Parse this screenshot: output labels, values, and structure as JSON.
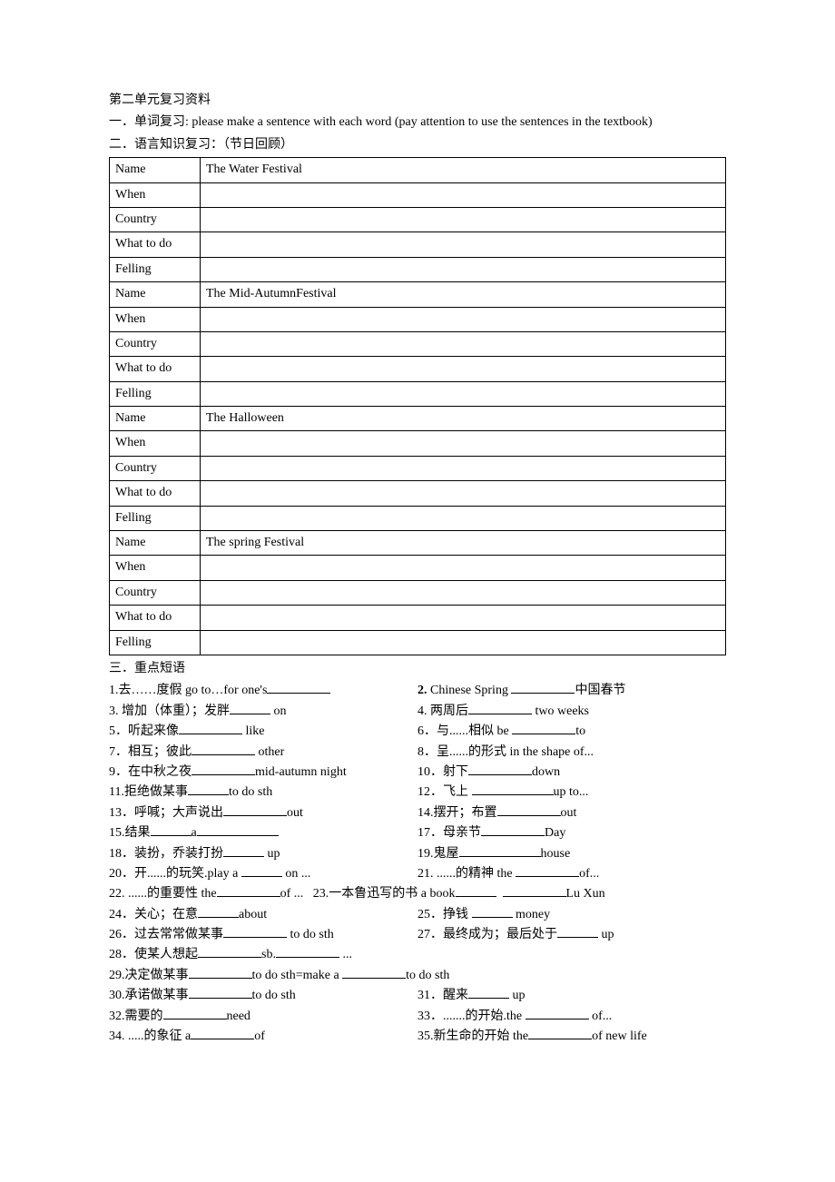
{
  "header": {
    "title": "第二单元复习资料",
    "section1": "一．单词复习: please make a sentence with each word (pay attention to use the sentences in the textbook)",
    "section2": "二．语言知识复习：（节日回顾）"
  },
  "table": {
    "rows": [
      {
        "label": "Name",
        "value": "The Water Festival"
      },
      {
        "label": "When",
        "value": ""
      },
      {
        "label": "Country",
        "value": ""
      },
      {
        "label": "What to do",
        "value": ""
      },
      {
        "label": "Felling",
        "value": ""
      },
      {
        "label": "Name",
        "value": "The Mid-AutumnFestival"
      },
      {
        "label": "When",
        "value": ""
      },
      {
        "label": "Country",
        "value": ""
      },
      {
        "label": "What to do",
        "value": ""
      },
      {
        "label": "Felling",
        "value": ""
      },
      {
        "label": "Name",
        "value": "The Halloween"
      },
      {
        "label": "When",
        "value": ""
      },
      {
        "label": "Country",
        "value": ""
      },
      {
        "label": "What to do",
        "value": ""
      },
      {
        "label": "Felling",
        "value": ""
      },
      {
        "label": "Name",
        "value": "The spring Festival"
      },
      {
        "label": "When",
        "value": ""
      },
      {
        "label": "Country",
        "value": ""
      },
      {
        "label": "What to do",
        "value": ""
      },
      {
        "label": "Felling",
        "value": ""
      }
    ]
  },
  "section3": {
    "title": "三．重点短语",
    "items": {
      "p1a": "1.去……度假  go to…for one's",
      "p1b": "2.",
      "p1b2": " Chinese Spring ",
      "p1b3": "中国春节",
      "p2a": " 3. 增加（体重）；发胖",
      "p2a2": " on",
      "p2b": "4. 两周后",
      "p2b2": " two weeks",
      "p3a": "5．听起来像",
      "p3a2": " like",
      "p3b": "6．与......相似 be ",
      "p3b2": "to",
      "p4a": "7．相互；彼此",
      "p4a2": " other",
      "p4b": " 8．呈......的形式 in the shape of...",
      "p5a": " 9．在中秋之夜",
      "p5a2": "mid-autumn night",
      "p5b": "10．射下",
      "p5b2": "down",
      "p6a": "11.拒绝做某事",
      "p6a2": "to do sth",
      "p6b": " 12．飞上 ",
      "p6b2": "up to...",
      "p7a": " 13．呼喊；大声说出",
      "p7a2": "out",
      "p7b": "14.摆开；布置",
      "p7b2": "out",
      "p8a": " 15.结果",
      "p8a2": "a",
      "p8b": "17．母亲节",
      "p8b2": "Day",
      "p9a": " 18．装扮，乔装打扮",
      "p9a2": " up",
      "p9b": "19.鬼屋",
      "p9b2": "house",
      "p10a": "20．开......的玩笑.play a ",
      "p10a2": " on ...",
      "p10b": " 21. ......的精神 the ",
      "p10b2": "of...",
      "p11a": " 22. ......的重要性 the",
      "p11a2": "of ...",
      "p11b": "23.一本鲁迅写的书 a book",
      "p11b2": "Lu Xun",
      "p12a": "24．关心；在意",
      "p12a2": "about",
      "p12b": "25．挣钱 ",
      "p12b2": " money",
      "p13a": "26．过去常常做某事",
      "p13a2": " to do sth",
      "p13b": "27．最终成为；最后处于",
      "p13b2": " up",
      "p14": " 28．使某人想起",
      "p14b": "sb.",
      "p14c": " ...",
      "p15": "29.决定做某事",
      "p15b": "to do sth=make a ",
      "p15c": "to do sth",
      "p16a": "30.承诺做某事",
      "p16a2": "to do sth",
      "p16b": "31．醒来",
      "p16b2": " up",
      "p17a": " 32.需要的",
      "p17a2": "need",
      "p17b": "33．.......的开始.the ",
      "p17b2": " of...",
      "p18a": "  34. .....的象征 a",
      "p18a2": "of",
      "p18b": " 35.新生命的开始 the",
      "p18b2": "of new life"
    }
  }
}
